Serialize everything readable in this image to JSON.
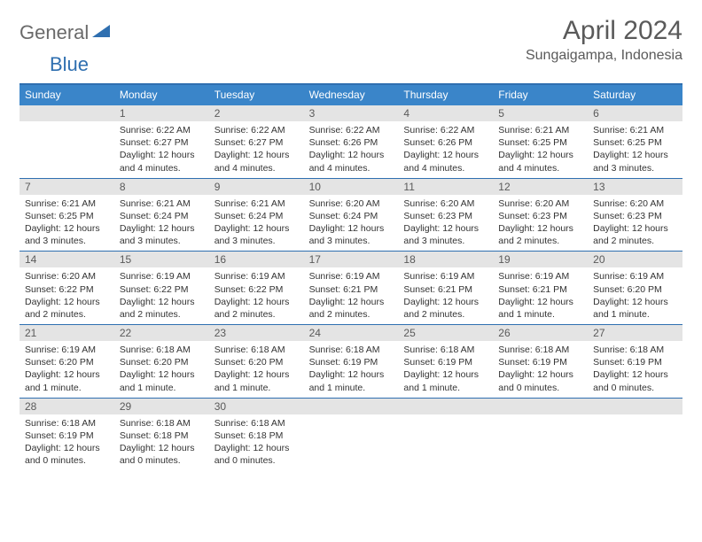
{
  "logo": {
    "text1": "General",
    "text2": "Blue"
  },
  "title": "April 2024",
  "location": "Sungaigampa, Indonesia",
  "day_headers": [
    "Sunday",
    "Monday",
    "Tuesday",
    "Wednesday",
    "Thursday",
    "Friday",
    "Saturday"
  ],
  "colors": {
    "header_bg": "#3a85c9",
    "border": "#2f6fb0",
    "daynum_bg": "#e4e4e4",
    "text": "#333333",
    "title_text": "#5a5a5a"
  },
  "weeks": [
    [
      {
        "n": "",
        "sr": "",
        "ss": "",
        "dl": ""
      },
      {
        "n": "1",
        "sr": "6:22 AM",
        "ss": "6:27 PM",
        "dl": "12 hours and 4 minutes."
      },
      {
        "n": "2",
        "sr": "6:22 AM",
        "ss": "6:27 PM",
        "dl": "12 hours and 4 minutes."
      },
      {
        "n": "3",
        "sr": "6:22 AM",
        "ss": "6:26 PM",
        "dl": "12 hours and 4 minutes."
      },
      {
        "n": "4",
        "sr": "6:22 AM",
        "ss": "6:26 PM",
        "dl": "12 hours and 4 minutes."
      },
      {
        "n": "5",
        "sr": "6:21 AM",
        "ss": "6:25 PM",
        "dl": "12 hours and 4 minutes."
      },
      {
        "n": "6",
        "sr": "6:21 AM",
        "ss": "6:25 PM",
        "dl": "12 hours and 3 minutes."
      }
    ],
    [
      {
        "n": "7",
        "sr": "6:21 AM",
        "ss": "6:25 PM",
        "dl": "12 hours and 3 minutes."
      },
      {
        "n": "8",
        "sr": "6:21 AM",
        "ss": "6:24 PM",
        "dl": "12 hours and 3 minutes."
      },
      {
        "n": "9",
        "sr": "6:21 AM",
        "ss": "6:24 PM",
        "dl": "12 hours and 3 minutes."
      },
      {
        "n": "10",
        "sr": "6:20 AM",
        "ss": "6:24 PM",
        "dl": "12 hours and 3 minutes."
      },
      {
        "n": "11",
        "sr": "6:20 AM",
        "ss": "6:23 PM",
        "dl": "12 hours and 3 minutes."
      },
      {
        "n": "12",
        "sr": "6:20 AM",
        "ss": "6:23 PM",
        "dl": "12 hours and 2 minutes."
      },
      {
        "n": "13",
        "sr": "6:20 AM",
        "ss": "6:23 PM",
        "dl": "12 hours and 2 minutes."
      }
    ],
    [
      {
        "n": "14",
        "sr": "6:20 AM",
        "ss": "6:22 PM",
        "dl": "12 hours and 2 minutes."
      },
      {
        "n": "15",
        "sr": "6:19 AM",
        "ss": "6:22 PM",
        "dl": "12 hours and 2 minutes."
      },
      {
        "n": "16",
        "sr": "6:19 AM",
        "ss": "6:22 PM",
        "dl": "12 hours and 2 minutes."
      },
      {
        "n": "17",
        "sr": "6:19 AM",
        "ss": "6:21 PM",
        "dl": "12 hours and 2 minutes."
      },
      {
        "n": "18",
        "sr": "6:19 AM",
        "ss": "6:21 PM",
        "dl": "12 hours and 2 minutes."
      },
      {
        "n": "19",
        "sr": "6:19 AM",
        "ss": "6:21 PM",
        "dl": "12 hours and 1 minute."
      },
      {
        "n": "20",
        "sr": "6:19 AM",
        "ss": "6:20 PM",
        "dl": "12 hours and 1 minute."
      }
    ],
    [
      {
        "n": "21",
        "sr": "6:19 AM",
        "ss": "6:20 PM",
        "dl": "12 hours and 1 minute."
      },
      {
        "n": "22",
        "sr": "6:18 AM",
        "ss": "6:20 PM",
        "dl": "12 hours and 1 minute."
      },
      {
        "n": "23",
        "sr": "6:18 AM",
        "ss": "6:20 PM",
        "dl": "12 hours and 1 minute."
      },
      {
        "n": "24",
        "sr": "6:18 AM",
        "ss": "6:19 PM",
        "dl": "12 hours and 1 minute."
      },
      {
        "n": "25",
        "sr": "6:18 AM",
        "ss": "6:19 PM",
        "dl": "12 hours and 1 minute."
      },
      {
        "n": "26",
        "sr": "6:18 AM",
        "ss": "6:19 PM",
        "dl": "12 hours and 0 minutes."
      },
      {
        "n": "27",
        "sr": "6:18 AM",
        "ss": "6:19 PM",
        "dl": "12 hours and 0 minutes."
      }
    ],
    [
      {
        "n": "28",
        "sr": "6:18 AM",
        "ss": "6:19 PM",
        "dl": "12 hours and 0 minutes."
      },
      {
        "n": "29",
        "sr": "6:18 AM",
        "ss": "6:18 PM",
        "dl": "12 hours and 0 minutes."
      },
      {
        "n": "30",
        "sr": "6:18 AM",
        "ss": "6:18 PM",
        "dl": "12 hours and 0 minutes."
      },
      {
        "n": "",
        "sr": "",
        "ss": "",
        "dl": ""
      },
      {
        "n": "",
        "sr": "",
        "ss": "",
        "dl": ""
      },
      {
        "n": "",
        "sr": "",
        "ss": "",
        "dl": ""
      },
      {
        "n": "",
        "sr": "",
        "ss": "",
        "dl": ""
      }
    ]
  ],
  "labels": {
    "sunrise": "Sunrise:",
    "sunset": "Sunset:",
    "daylight": "Daylight:"
  }
}
